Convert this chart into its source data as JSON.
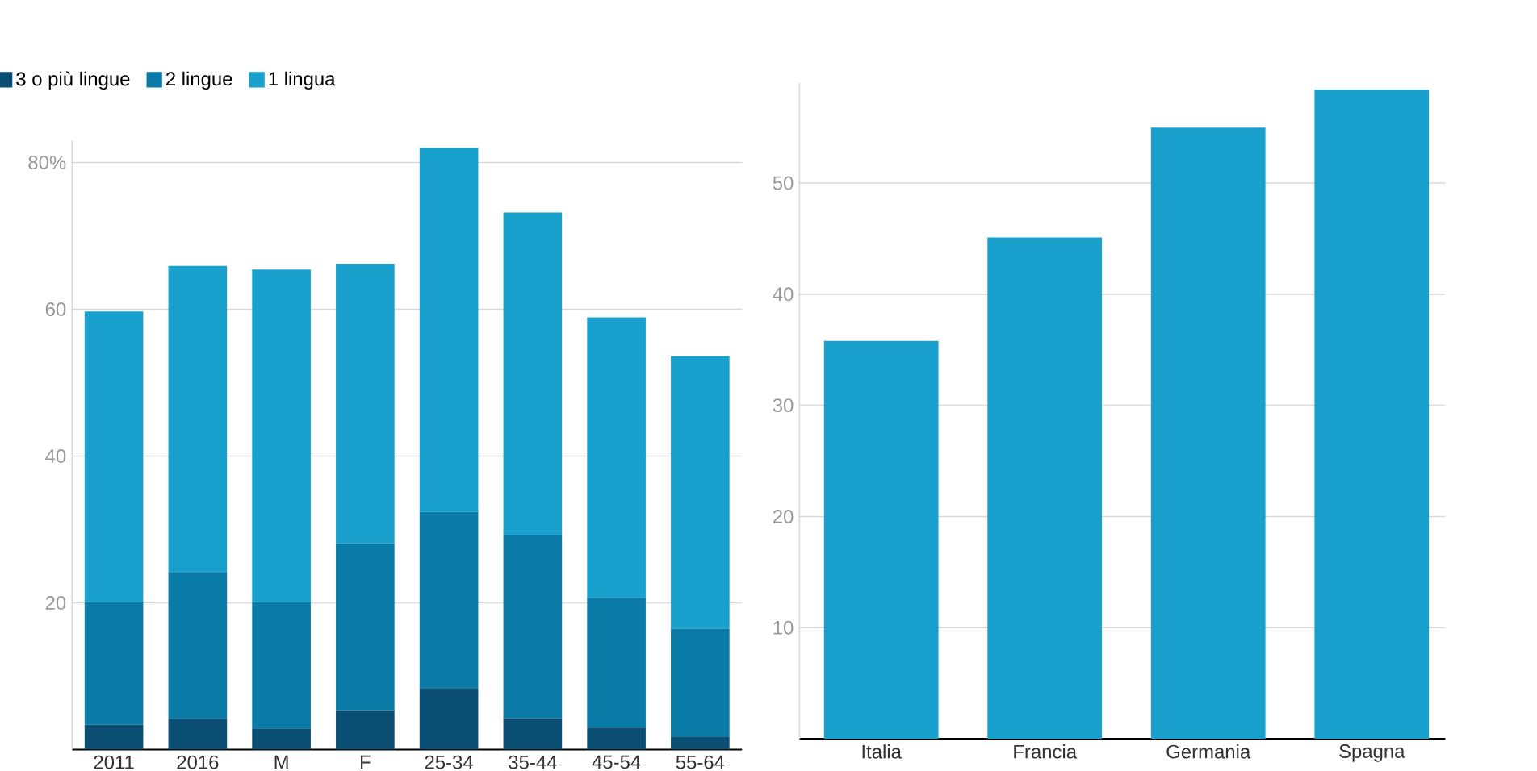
{
  "chart_data": [
    {
      "type": "bar",
      "stacked": true,
      "categories": [
        "2011",
        "2016",
        "M",
        "F",
        "25-34",
        "35-44",
        "45-54",
        "55-64"
      ],
      "series": [
        {
          "name": "3 o più lingue",
          "color": "#0b4f75",
          "values": [
            3.4,
            4.2,
            2.9,
            5.4,
            8.4,
            4.3,
            3.0,
            1.8
          ]
        },
        {
          "name": "2 lingue",
          "color": "#0a7aa6",
          "values": [
            16.7,
            20.0,
            17.2,
            22.7,
            24.0,
            25.0,
            17.7,
            14.7
          ]
        },
        {
          "name": "1 lingua",
          "color": "#1aa0cc",
          "values": [
            39.6,
            41.7,
            45.3,
            38.1,
            49.6,
            43.9,
            38.2,
            37.1
          ]
        }
      ],
      "ylim": [
        0,
        83
      ],
      "yticks": [
        20,
        40,
        60,
        {
          "value": 80,
          "label": "80%"
        }
      ],
      "grid": "y",
      "legend": "top left"
    },
    {
      "type": "bar",
      "categories": [
        "Italia",
        "Francia",
        "Germania",
        "Spagna"
      ],
      "values": [
        35.8,
        45.1,
        55.0,
        58.4
      ],
      "color": "#1aa0cc",
      "ylim": [
        0,
        59
      ],
      "yticks": [
        10,
        20,
        30,
        40,
        50
      ],
      "grid": "y"
    }
  ]
}
